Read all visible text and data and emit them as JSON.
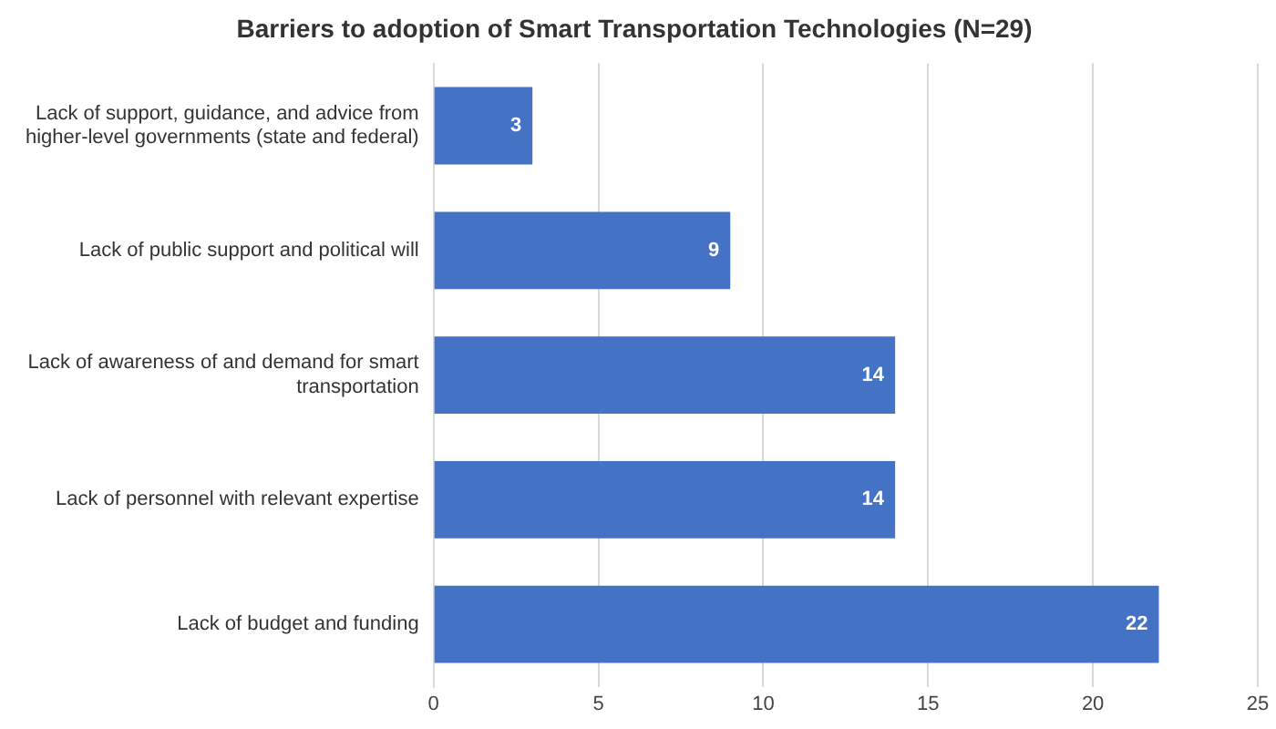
{
  "chart_data": {
    "type": "bar",
    "orientation": "horizontal",
    "title": "Barriers to adoption of Smart Transportation Technologies (N=29)",
    "categories": [
      "Lack of support, guidance, and advice from higher-level governments (state and federal)",
      "Lack of public support and political will",
      "Lack of awareness of and demand for smart transportation",
      "Lack of personnel with relevant expertise",
      "Lack of budget and funding"
    ],
    "values": [
      3,
      9,
      14,
      14,
      22
    ],
    "color": "#4472c4",
    "xlim": [
      0,
      25
    ],
    "xticks": [
      0,
      5,
      10,
      15,
      20,
      25
    ],
    "grid": "x",
    "data_labels": true
  }
}
